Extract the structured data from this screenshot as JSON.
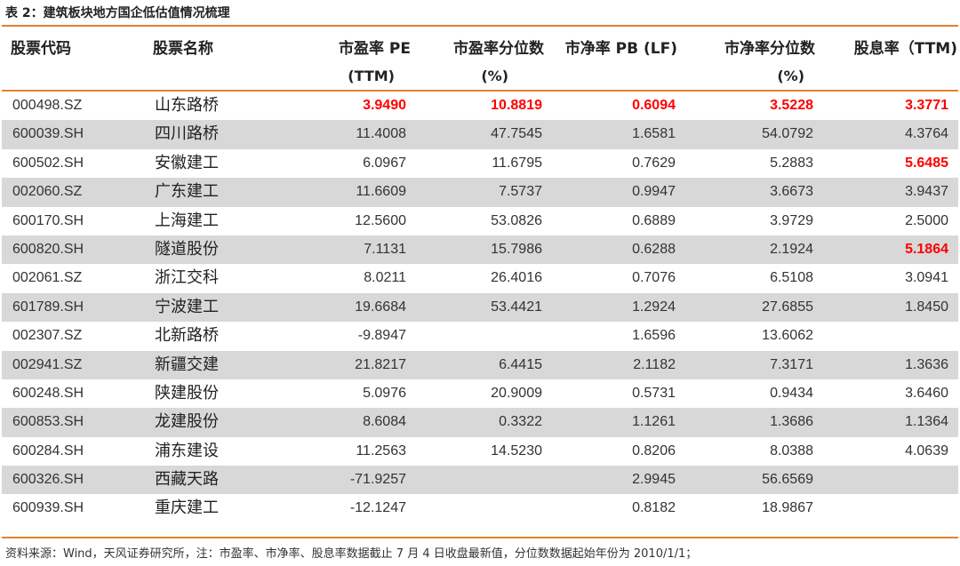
{
  "caption": "表 2：建筑板块地方国企低估值情况梳理",
  "columns": [
    {
      "line1": "股票代码",
      "line2": ""
    },
    {
      "line1": "股票名称",
      "line2": ""
    },
    {
      "line1": "市盈率 PE",
      "line2": "(TTM)"
    },
    {
      "line1": "市盈率分位数",
      "line2": "(%)"
    },
    {
      "line1": "市净率 PB (LF)",
      "line2": ""
    },
    {
      "line1": "市净率分位数",
      "line2": "(%)"
    },
    {
      "line1": "股息率（TTM)",
      "line2": ""
    }
  ],
  "rows": [
    {
      "code": "000498.SZ",
      "name": "山东路桥",
      "pe": "3.9490",
      "pe_pct": "10.8819",
      "pb": "0.6094",
      "pb_pct": "3.5228",
      "div": "3.3771",
      "hl": [
        "pe",
        "pe_pct",
        "pb",
        "pb_pct",
        "div"
      ]
    },
    {
      "code": "600039.SH",
      "name": "四川路桥",
      "pe": "11.4008",
      "pe_pct": "47.7545",
      "pb": "1.6581",
      "pb_pct": "54.0792",
      "div": "4.3764",
      "hl": []
    },
    {
      "code": "600502.SH",
      "name": "安徽建工",
      "pe": "6.0967",
      "pe_pct": "11.6795",
      "pb": "0.7629",
      "pb_pct": "5.2883",
      "div": "5.6485",
      "hl": [
        "div"
      ]
    },
    {
      "code": "002060.SZ",
      "name": "广东建工",
      "pe": "11.6609",
      "pe_pct": "7.5737",
      "pb": "0.9947",
      "pb_pct": "3.6673",
      "div": "3.9437",
      "hl": []
    },
    {
      "code": "600170.SH",
      "name": "上海建工",
      "pe": "12.5600",
      "pe_pct": "53.0826",
      "pb": "0.6889",
      "pb_pct": "3.9729",
      "div": "2.5000",
      "hl": []
    },
    {
      "code": "600820.SH",
      "name": "隧道股份",
      "pe": "7.1131",
      "pe_pct": "15.7986",
      "pb": "0.6288",
      "pb_pct": "2.1924",
      "div": "5.1864",
      "hl": [
        "div"
      ]
    },
    {
      "code": "002061.SZ",
      "name": "浙江交科",
      "pe": "8.0211",
      "pe_pct": "26.4016",
      "pb": "0.7076",
      "pb_pct": "6.5108",
      "div": "3.0941",
      "hl": []
    },
    {
      "code": "601789.SH",
      "name": "宁波建工",
      "pe": "19.6684",
      "pe_pct": "53.4421",
      "pb": "1.2924",
      "pb_pct": "27.6855",
      "div": "1.8450",
      "hl": []
    },
    {
      "code": "002307.SZ",
      "name": "北新路桥",
      "pe": "-9.8947",
      "pe_pct": "",
      "pb": "1.6596",
      "pb_pct": "13.6062",
      "div": "",
      "hl": []
    },
    {
      "code": "002941.SZ",
      "name": "新疆交建",
      "pe": "21.8217",
      "pe_pct": "6.4415",
      "pb": "2.1182",
      "pb_pct": "7.3171",
      "div": "1.3636",
      "hl": []
    },
    {
      "code": "600248.SH",
      "name": "陕建股份",
      "pe": "5.0976",
      "pe_pct": "20.9009",
      "pb": "0.5731",
      "pb_pct": "0.9434",
      "div": "3.6460",
      "hl": []
    },
    {
      "code": "600853.SH",
      "name": "龙建股份",
      "pe": "8.6084",
      "pe_pct": "0.3322",
      "pb": "1.1261",
      "pb_pct": "1.3686",
      "div": "1.1364",
      "hl": []
    },
    {
      "code": "600284.SH",
      "name": "浦东建设",
      "pe": "11.2563",
      "pe_pct": "14.5230",
      "pb": "0.8206",
      "pb_pct": "8.0388",
      "div": "4.0639",
      "hl": []
    },
    {
      "code": "600326.SH",
      "name": "西藏天路",
      "pe": "-71.9257",
      "pe_pct": "",
      "pb": "2.9945",
      "pb_pct": "56.6569",
      "div": "",
      "hl": []
    },
    {
      "code": "600939.SH",
      "name": "重庆建工",
      "pe": "-12.1247",
      "pe_pct": "",
      "pb": "0.8182",
      "pb_pct": "18.9867",
      "div": "",
      "hl": []
    }
  ],
  "note": "资料来源：Wind，天风证券研究所，注：市盈率、市净率、股息率数据截止 7 月 4 日收盘最新值，分位数数据起始年份为 2010/1/1；",
  "colors": {
    "rule": "#e3812f",
    "shade": "#d8d8d8",
    "highlight": "#ff0000"
  }
}
